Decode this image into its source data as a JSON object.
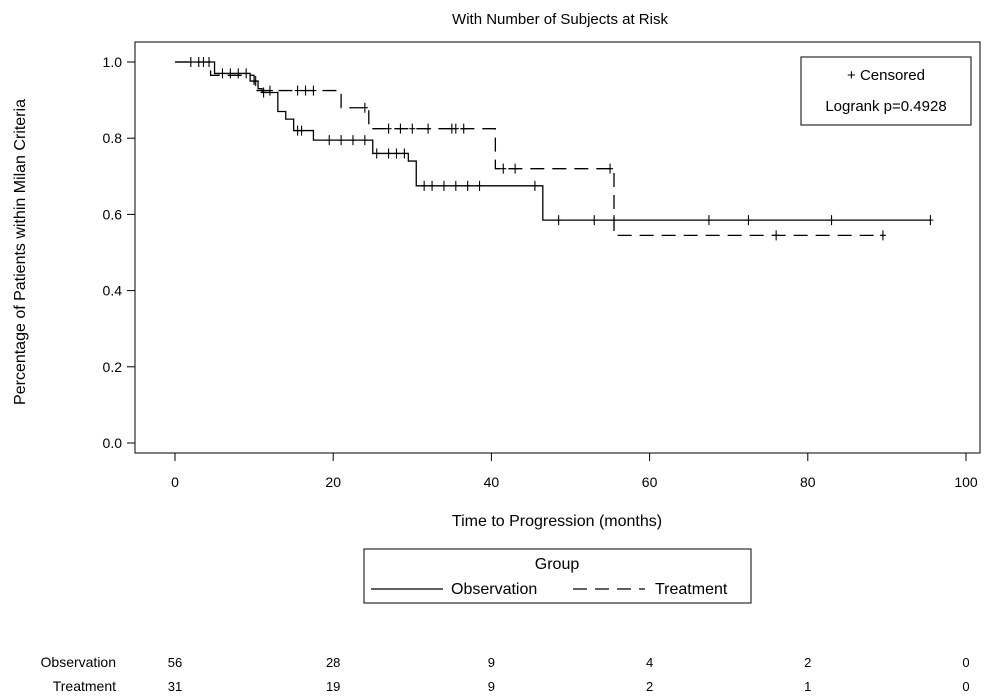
{
  "chart_data": {
    "type": "line",
    "title": "With Number of Subjects at Risk",
    "xlabel": "Time to Progression (months)",
    "ylabel": "Percentage of Patients within Milan Criteria",
    "xlim": [
      0,
      100
    ],
    "ylim": [
      0,
      1.0
    ],
    "x_ticks": [
      0,
      20,
      40,
      60,
      80,
      100
    ],
    "x_tick_labels": [
      "0",
      "20",
      "40",
      "60",
      "80",
      "100"
    ],
    "y_ticks": [
      0,
      0.2,
      0.4,
      0.6,
      0.8,
      1.0
    ],
    "y_tick_labels": [
      "0.0",
      "0.2",
      "0.4",
      "0.6",
      "0.8",
      "1.0"
    ],
    "grid": false,
    "inset_box": {
      "censored_label": "+ Censored",
      "logrank_label": "Logrank p=0.4928"
    },
    "legend": {
      "title": "Group",
      "placement": "bottom",
      "entries": [
        "Observation",
        "Treatment"
      ]
    },
    "series": [
      {
        "name": "Observation",
        "style": "solid",
        "steps": [
          [
            0,
            1.0
          ],
          [
            5,
            0.97
          ],
          [
            9.5,
            0.95
          ],
          [
            10.5,
            0.93
          ],
          [
            11,
            0.92
          ],
          [
            13,
            0.87
          ],
          [
            14,
            0.85
          ],
          [
            15,
            0.82
          ],
          [
            17.5,
            0.795
          ],
          [
            25,
            0.76
          ],
          [
            29.5,
            0.74
          ],
          [
            30.5,
            0.675
          ],
          [
            46.5,
            0.585
          ],
          [
            95.5,
            0.585
          ]
        ],
        "censored": [
          2,
          3,
          3.6,
          4.3,
          6,
          7,
          8,
          9,
          10.2,
          11.2,
          15.5,
          16,
          19.5,
          21,
          22.5,
          24,
          25.5,
          27,
          28,
          29,
          31.5,
          32.5,
          34,
          35.5,
          37,
          38.5,
          45.5,
          48.5,
          53,
          55.5,
          67.5,
          72.5,
          83,
          95.5
        ]
      },
      {
        "name": "Treatment",
        "style": "dashed",
        "steps": [
          [
            0,
            1.0
          ],
          [
            4.5,
            0.965
          ],
          [
            10,
            0.925
          ],
          [
            21,
            0.88
          ],
          [
            24.5,
            0.825
          ],
          [
            40.5,
            0.72
          ],
          [
            55.5,
            0.545
          ],
          [
            89.5,
            0.545
          ]
        ],
        "censored": [
          12,
          15.5,
          16.5,
          17.5,
          24,
          27,
          28.5,
          30,
          32,
          35,
          35.5,
          36.5,
          41.5,
          43,
          55,
          76,
          89.5
        ]
      }
    ]
  },
  "risk_table": {
    "times": [
      0,
      20,
      40,
      60,
      80,
      100
    ],
    "rows": [
      {
        "name": "Observation",
        "counts": [
          "56",
          "28",
          "9",
          "4",
          "2",
          "0"
        ]
      },
      {
        "name": "Treatment",
        "counts": [
          "31",
          "19",
          "9",
          "2",
          "1",
          "0"
        ]
      }
    ]
  }
}
